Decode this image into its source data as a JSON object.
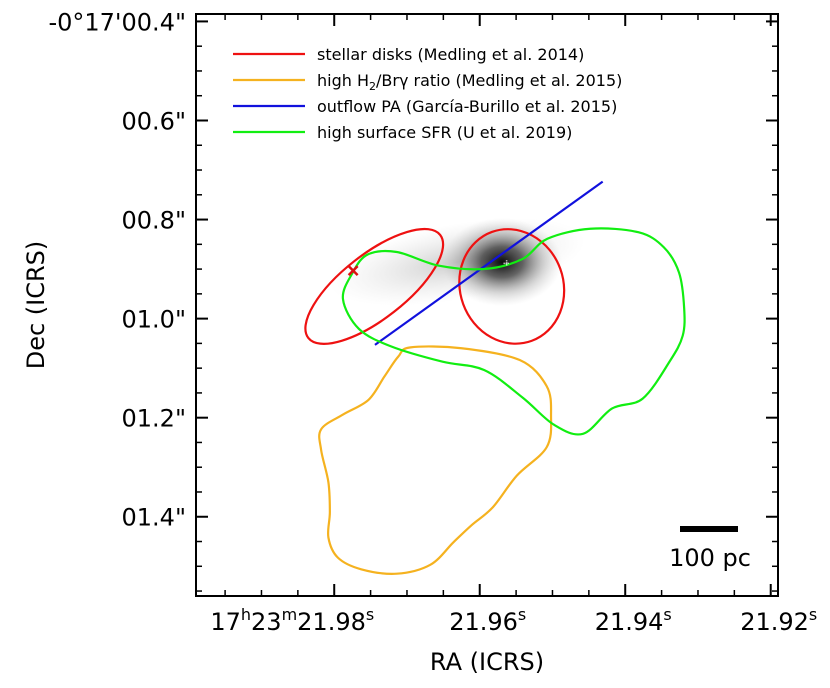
{
  "chart_data": {
    "type": "contour",
    "xlabel": "RA (ICRS)",
    "ylabel": "Dec (ICRS)",
    "xlim_seconds": [
      21.999,
      21.919
    ],
    "ylim_arcsec": [
      1.56,
      0.385
    ],
    "x_ticks": [
      {
        "value": 21.98,
        "h": "17",
        "m": "23",
        "s_int": "21.98",
        "prefix": true
      },
      {
        "value": 21.96,
        "s_int": "21.96",
        "prefix": false
      },
      {
        "value": 21.94,
        "s_int": "21.94",
        "prefix": false
      },
      {
        "value": 21.92,
        "s_int": "21.92",
        "prefix": false
      }
    ],
    "x_minor_step": 0.005,
    "y_ticks": [
      {
        "value": 0.4,
        "label": "-0°17'00.4\""
      },
      {
        "value": 0.6,
        "label": "00.6\""
      },
      {
        "value": 0.8,
        "label": "00.8\""
      },
      {
        "value": 1.0,
        "label": "01.0\""
      },
      {
        "value": 1.2,
        "label": "01.2\""
      },
      {
        "value": 1.4,
        "label": "01.4\""
      }
    ],
    "y_minor_step": 0.05,
    "legend": [
      {
        "label_pre": "stellar disks (Medling et al. 2014)",
        "color": "#ee1111"
      },
      {
        "label_pre": "high H",
        "sub": "2",
        "label_post": "/Brγ ratio (Medling et al. 2015)",
        "color": "#f5b21f"
      },
      {
        "label_pre": "outflow PA (García-Burillo et al. 2015)",
        "color": "#1111dd"
      },
      {
        "label_pre": "high surface SFR (U et al. 2019)",
        "color": "#11ee11"
      }
    ],
    "series": [
      {
        "name": "stellar disk large",
        "type": "ellipse",
        "color": "#ee1111",
        "center": [
          21.9745,
          0.935
        ],
        "rx_s": 0.0115,
        "ry_arcsec": 0.065,
        "angle_deg": -38
      },
      {
        "name": "stellar disk small",
        "type": "ellipse",
        "color": "#ee1111",
        "center": [
          21.9556,
          0.935
        ],
        "rx_s": 0.0071,
        "ry_arcsec": 0.117,
        "angle_deg": -20
      },
      {
        "name": "outflow PA",
        "type": "line",
        "color": "#1111dd",
        "points": [
          [
            21.9744,
            1.053
          ],
          [
            21.9431,
            0.7235
          ]
        ]
      },
      {
        "name": "high H2/Brg ratio",
        "type": "contour",
        "color": "#f5b21f",
        "points": [
          [
            21.9695,
            1.058
          ],
          [
            21.9625,
            1.0598
          ],
          [
            21.9545,
            1.0836
          ],
          [
            21.9508,
            1.1363
          ],
          [
            21.9502,
            1.1959
          ],
          [
            21.9508,
            1.2597
          ],
          [
            21.9549,
            1.317
          ],
          [
            21.9582,
            1.3808
          ],
          [
            21.9611,
            1.4168
          ],
          [
            21.9636,
            1.4513
          ],
          [
            21.9668,
            1.4971
          ],
          [
            21.9714,
            1.515
          ],
          [
            21.9763,
            1.506
          ],
          [
            21.9795,
            1.4825
          ],
          [
            21.9808,
            1.4419
          ],
          [
            21.9806,
            1.3906
          ],
          [
            21.9808,
            1.3305
          ],
          [
            21.9818,
            1.2652
          ],
          [
            21.9818,
            1.2234
          ],
          [
            21.9788,
            1.1938
          ],
          [
            21.9753,
            1.1642
          ],
          [
            21.9731,
            1.1169
          ],
          [
            21.9712,
            1.0768
          ],
          [
            21.9695,
            1.058
          ]
        ]
      },
      {
        "name": "high surface SFR",
        "type": "contour",
        "color": "#11ee11",
        "points": [
          [
            21.9775,
            0.9082
          ],
          [
            21.9754,
            0.8705
          ],
          [
            21.9714,
            0.8655
          ],
          [
            21.9656,
            0.8932
          ],
          [
            21.9592,
            0.8996
          ],
          [
            21.9541,
            0.8795
          ],
          [
            21.9507,
            0.8388
          ],
          [
            21.9448,
            0.8186
          ],
          [
            21.9382,
            0.8256
          ],
          [
            21.9347,
            0.8559
          ],
          [
            21.9326,
            0.9073
          ],
          [
            21.9319,
            0.9788
          ],
          [
            21.9321,
            1.0346
          ],
          [
            21.9339,
            1.0866
          ],
          [
            21.9376,
            1.1615
          ],
          [
            21.9418,
            1.1814
          ],
          [
            21.9458,
            1.2325
          ],
          [
            21.9498,
            1.2142
          ],
          [
            21.9541,
            1.1595
          ],
          [
            21.9594,
            1.1038
          ],
          [
            21.9651,
            1.087
          ],
          [
            21.9721,
            1.0565
          ],
          [
            21.9766,
            1.0208
          ],
          [
            21.9788,
            0.9605
          ],
          [
            21.9775,
            0.9082
          ]
        ]
      }
    ],
    "markers": [
      {
        "name": "cross",
        "symbol": "×",
        "color": "#dd1111",
        "x": 21.9774,
        "y": 0.9031
      },
      {
        "name": "nucleus",
        "symbol": "+",
        "color": "#ffffff",
        "x": 21.9563,
        "y": 0.8885
      }
    ],
    "image": {
      "description_value": "grayscale emission",
      "peak_x": 21.9557,
      "peak_y": 0.893
    },
    "scale_bar": {
      "label": "100 pc"
    }
  }
}
